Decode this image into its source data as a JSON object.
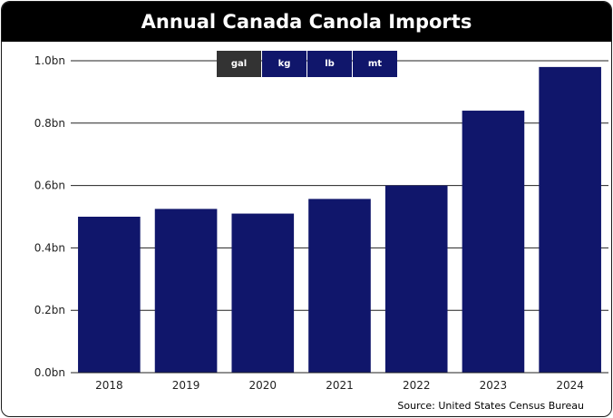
{
  "title": "Annual Canada Canola Imports",
  "units": [
    {
      "label": "gal",
      "active": true
    },
    {
      "label": "kg",
      "active": false
    },
    {
      "label": "lb",
      "active": false
    },
    {
      "label": "mt",
      "active": false
    }
  ],
  "source": "Source: United States Census Bureau",
  "colors": {
    "bar": "#10166b",
    "active_unit": "#333333",
    "title_bg": "#000000"
  },
  "chart_data": {
    "type": "bar",
    "categories": [
      "2018",
      "2019",
      "2020",
      "2021",
      "2022",
      "2023",
      "2024"
    ],
    "values": [
      0.5,
      0.525,
      0.51,
      0.557,
      0.6,
      0.84,
      0.98
    ],
    "ylim": [
      0,
      1.0
    ],
    "yticks": [
      0,
      0.2,
      0.4,
      0.6,
      0.8,
      1.0
    ],
    "ytick_labels": [
      "0.0bn",
      "0.2bn",
      "0.4bn",
      "0.6bn",
      "0.8bn",
      "1.0bn"
    ],
    "xlabel": "",
    "ylabel": "",
    "grid": true,
    "legend": "none"
  }
}
